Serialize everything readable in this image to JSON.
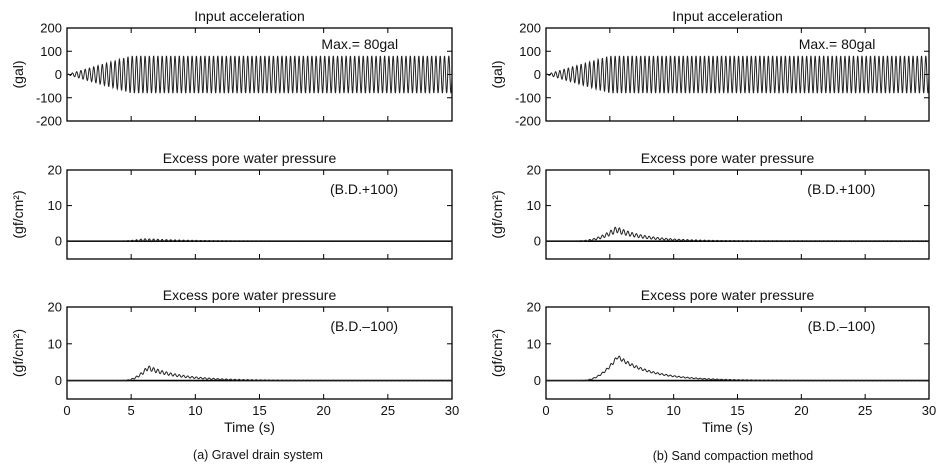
{
  "chart_data": [
    {
      "type": "line",
      "column": "a",
      "title": "Input acceleration",
      "ylabel": "(gal)",
      "ylim": [
        -200,
        200
      ],
      "yticks": [
        200,
        100,
        0,
        -100,
        -200
      ],
      "xlim": [
        0,
        30
      ],
      "xticks": [
        0,
        5,
        10,
        15,
        20,
        25,
        30
      ],
      "annotation": "Max.= 80gal",
      "signal": {
        "kind": "sine_ramp",
        "amplitude": 80,
        "ramp_end": 5,
        "freq_hz": 3
      },
      "series": [
        {
          "values": []
        }
      ]
    },
    {
      "type": "line",
      "column": "a",
      "title": "Excess pore water pressure",
      "ylabel": "(gf/cm²)",
      "ylim": [
        -5,
        20
      ],
      "yticks": [
        20,
        10,
        0
      ],
      "xlim": [
        0,
        30
      ],
      "xticks": [
        0,
        5,
        10,
        15,
        20,
        25,
        30
      ],
      "annotation": "(B.D.+100)",
      "signal": {
        "kind": "pulse",
        "peak": 0.3,
        "peak_time": 6,
        "rise": 1,
        "decay": 3,
        "osc": 0.4
      },
      "series": [
        {
          "values": []
        }
      ]
    },
    {
      "type": "line",
      "column": "a",
      "title": "Excess pore water pressure",
      "ylabel": "(gf/cm²)",
      "ylim": [
        -5,
        20
      ],
      "yticks": [
        20,
        10,
        0
      ],
      "xlim": [
        0,
        30
      ],
      "xticks": [
        0,
        5,
        10,
        15,
        20,
        25,
        30
      ],
      "xlabel": "Time (s)",
      "annotation": "(B.D.–100)",
      "signal": {
        "kind": "pulse",
        "peak": 3.5,
        "peak_time": 6.3,
        "rise": 0.9,
        "decay": 2.5,
        "osc": 0.6
      },
      "series": [
        {
          "values": []
        }
      ]
    },
    {
      "type": "line",
      "column": "b",
      "title": "Input acceleration",
      "ylabel": "(gal)",
      "ylim": [
        -200,
        200
      ],
      "yticks": [
        200,
        100,
        0,
        -100,
        -200
      ],
      "xlim": [
        0,
        30
      ],
      "xticks": [
        0,
        5,
        10,
        15,
        20,
        25,
        30
      ],
      "annotation": "Max.= 80gal",
      "signal": {
        "kind": "sine_ramp",
        "amplitude": 80,
        "ramp_end": 5,
        "freq_hz": 3
      },
      "series": [
        {
          "values": []
        }
      ]
    },
    {
      "type": "line",
      "column": "b",
      "title": "Excess pore water pressure",
      "ylabel": "(gf/cm²)",
      "ylim": [
        -5,
        20
      ],
      "yticks": [
        20,
        10,
        0
      ],
      "xlim": [
        0,
        30
      ],
      "xticks": [
        0,
        5,
        10,
        15,
        20,
        25,
        30
      ],
      "annotation": "(B.D.+100)",
      "signal": {
        "kind": "pulse",
        "peak": 3.3,
        "peak_time": 5.5,
        "rise": 1.4,
        "decay": 2.2,
        "osc": 0.8
      },
      "series": [
        {
          "values": []
        }
      ]
    },
    {
      "type": "line",
      "column": "b",
      "title": "Excess pore water pressure",
      "ylabel": "(gf/cm²)",
      "ylim": [
        -5,
        20
      ],
      "yticks": [
        20,
        10,
        0
      ],
      "xlim": [
        0,
        30
      ],
      "xticks": [
        0,
        5,
        10,
        15,
        20,
        25,
        30
      ],
      "xlabel": "Time (s)",
      "annotation": "(B.D.–100)",
      "signal": {
        "kind": "pulse",
        "peak": 6.5,
        "peak_time": 5.6,
        "rise": 1.3,
        "decay": 2.6,
        "osc": 0.5
      },
      "series": [
        {
          "values": []
        }
      ]
    }
  ],
  "captions": {
    "a": "(a) Gravel drain system",
    "b": "(b) Sand compaction method"
  }
}
